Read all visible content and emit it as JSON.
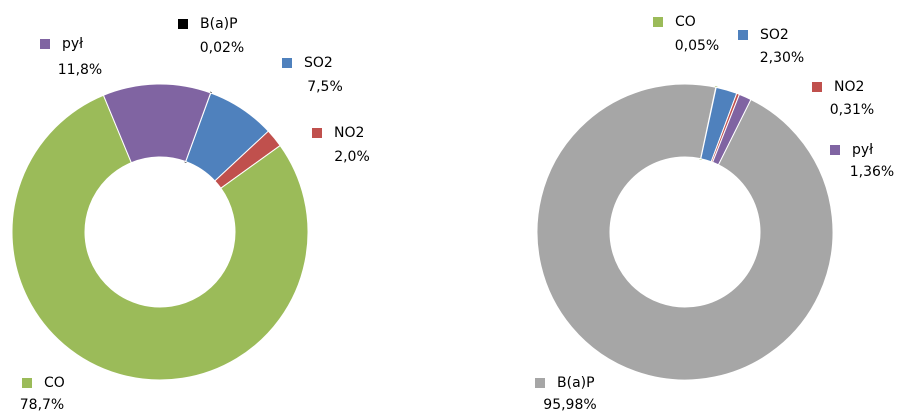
{
  "chart_data": [
    {
      "type": "donut",
      "categories": [
        "B(a)P",
        "SO2",
        "NO2",
        "CO",
        "pył"
      ],
      "values": [
        0.02,
        7.5,
        2.0,
        78.7,
        11.8
      ],
      "value_labels": [
        "0,02%",
        "7,5%",
        "2,0%",
        "78,7%",
        "11,8%"
      ],
      "colors": [
        "#000000",
        "#4f81bd",
        "#c0504d",
        "#9bbb59",
        "#8064a2"
      ]
    },
    {
      "type": "donut",
      "categories": [
        "CO",
        "SO2",
        "NO2",
        "pył",
        "B(a)P"
      ],
      "values": [
        0.05,
        2.3,
        0.31,
        1.36,
        95.98
      ],
      "value_labels": [
        "0,05%",
        "2,30%",
        "0,31%",
        "1,36%",
        "95,98%"
      ],
      "colors": [
        "#9bbb59",
        "#4f81bd",
        "#c0504d",
        "#8064a2",
        "#a6a6a6"
      ]
    }
  ]
}
